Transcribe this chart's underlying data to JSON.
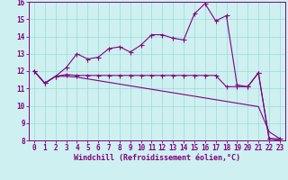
{
  "xlabel": "Windchill (Refroidissement éolien,°C)",
  "x": [
    0,
    1,
    2,
    3,
    4,
    5,
    6,
    7,
    8,
    9,
    10,
    11,
    12,
    13,
    14,
    15,
    16,
    17,
    18,
    19,
    20,
    21,
    22,
    23
  ],
  "line1": [
    12.0,
    11.3,
    11.7,
    12.2,
    13.0,
    12.7,
    12.8,
    13.3,
    13.4,
    13.1,
    13.5,
    14.1,
    14.1,
    13.9,
    13.8,
    15.3,
    15.9,
    14.9,
    15.2,
    11.2,
    11.1,
    11.9,
    8.1,
    8.1
  ],
  "line2": [
    12.0,
    11.3,
    11.7,
    11.8,
    11.75,
    11.75,
    11.75,
    11.75,
    11.75,
    11.75,
    11.75,
    11.75,
    11.75,
    11.75,
    11.75,
    11.75,
    11.75,
    11.75,
    11.1,
    11.1,
    11.1,
    11.9,
    8.1,
    8.0
  ],
  "line3": [
    12.0,
    11.3,
    11.7,
    11.7,
    11.65,
    11.55,
    11.45,
    11.35,
    11.25,
    11.15,
    11.05,
    10.95,
    10.85,
    10.75,
    10.65,
    10.55,
    10.45,
    10.35,
    10.25,
    10.15,
    10.05,
    9.95,
    8.5,
    8.1
  ],
  "line_color": "#800080",
  "bg_color": "#cef0f0",
  "grid_color": "#a0d8d8",
  "ylim": [
    8,
    16
  ],
  "xlim": [
    -0.5,
    23.5
  ],
  "yticks": [
    8,
    9,
    10,
    11,
    12,
    13,
    14,
    15,
    16
  ],
  "xticks": [
    0,
    1,
    2,
    3,
    4,
    5,
    6,
    7,
    8,
    9,
    10,
    11,
    12,
    13,
    14,
    15,
    16,
    17,
    18,
    19,
    20,
    21,
    22,
    23
  ],
  "markersize": 2.0,
  "linewidth": 0.8,
  "tick_fontsize": 5.5,
  "xlabel_fontsize": 6.0
}
